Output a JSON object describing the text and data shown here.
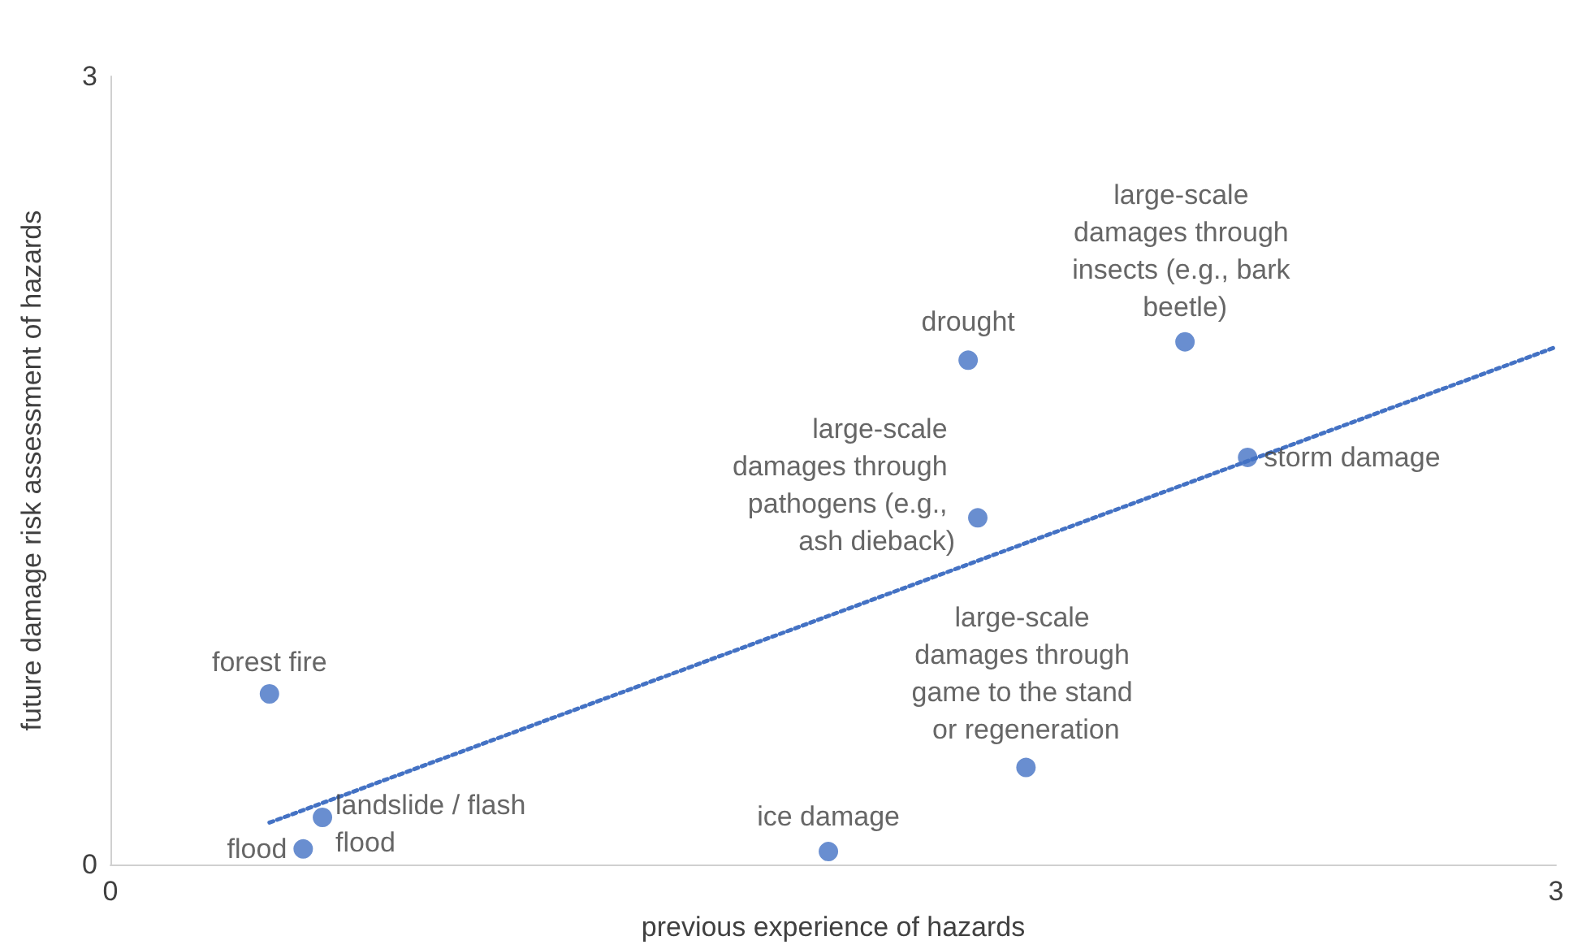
{
  "chart_data": {
    "type": "scatter",
    "xlabel": "previous experience of hazards",
    "ylabel": "future damage risk assessment of hazards",
    "xlim": [
      0,
      3
    ],
    "xticks": [
      0,
      3
    ],
    "ylim": [
      0,
      3
    ],
    "yticks": [
      0,
      3
    ],
    "grid": false,
    "marker": "circle",
    "series": [
      {
        "color": "#4472c4",
        "x": [
          0.33,
          0.44,
          0.4,
          1.49,
          1.9,
          1.8,
          1.78,
          2.23,
          2.36
        ],
        "values": [
          0.65,
          0.18,
          0.06,
          0.05,
          0.37,
          1.32,
          1.92,
          1.99,
          1.55
        ]
      },
      {
        "type": "line",
        "line_style": "dotted",
        "marker": "none",
        "color": "#4472c4",
        "x": [
          0.33,
          3
        ],
        "values": [
          0.16,
          1.97
        ]
      }
    ],
    "annotations": [
      {
        "text": "forest fire",
        "x": 0.33,
        "y": 0.65
      },
      {
        "text": "landslide / flash flood",
        "x": 0.44,
        "y": 0.18
      },
      {
        "text": "flood",
        "x": 0.4,
        "y": 0.06
      },
      {
        "text": "ice damage",
        "x": 1.49,
        "y": 0.05
      },
      {
        "text": "large-scale damages through game to the stand or regeneration",
        "x": 1.9,
        "y": 0.37
      },
      {
        "text": "large-scale damages through pathogens (e.g., ash dieback)",
        "x": 1.8,
        "y": 1.32
      },
      {
        "text": "drought",
        "x": 1.78,
        "y": 1.92
      },
      {
        "text": "large-scale damages through insects (e.g., bark beetle)",
        "x": 2.23,
        "y": 1.99
      },
      {
        "text": "storm damage",
        "x": 2.36,
        "y": 1.55
      }
    ]
  }
}
